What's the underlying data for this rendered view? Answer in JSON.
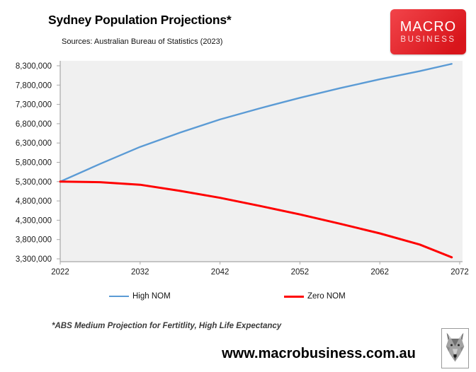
{
  "header": {
    "title": "Sydney Population Projections*",
    "subtitle": "Sources: Australian Bureau of Statistics (2023)",
    "logo": {
      "line1": "MACRO",
      "line2": "BUSINESS",
      "bg_color_top": "#f2444a",
      "bg_color_bottom": "#d8151b"
    }
  },
  "chart_data": {
    "type": "line",
    "title": "Sydney Population Projections*",
    "x": [
      2022,
      2027,
      2032,
      2037,
      2042,
      2047,
      2052,
      2057,
      2062,
      2067,
      2071
    ],
    "series": [
      {
        "name": "High NOM",
        "color": "#5b9bd5",
        "stroke_width": 2.4,
        "values": [
          5300000,
          5760000,
          6200000,
          6570000,
          6910000,
          7200000,
          7470000,
          7720000,
          7950000,
          8160000,
          8350000
        ]
      },
      {
        "name": "Zero NOM",
        "color": "#ff0000",
        "stroke_width": 3,
        "values": [
          5300000,
          5285000,
          5220000,
          5060000,
          4880000,
          4670000,
          4450000,
          4210000,
          3960000,
          3670000,
          3340000
        ]
      }
    ],
    "xlim": [
      2022,
      2072
    ],
    "xticks": [
      2022,
      2032,
      2042,
      2052,
      2062,
      2072
    ],
    "xtick_labels": [
      "2022",
      "2032",
      "2042",
      "2052",
      "2062",
      "2072"
    ],
    "yticks": [
      8300000,
      7800000,
      7300000,
      6800000,
      6300000,
      5800000,
      5300000,
      4800000,
      4300000,
      3800000,
      3300000
    ],
    "ytick_labels": [
      "8,300,000",
      "7,800,000",
      "7,300,000",
      "6,800,000",
      "6,300,000",
      "5,800,000",
      "5,300,000",
      "4,800,000",
      "4,300,000",
      "3,800,000",
      "3,300,000"
    ],
    "ylim": [
      3300000,
      8300000
    ],
    "grid": false,
    "plot_bg": "#f0f0f0",
    "axis_color": "#a6a6a6",
    "tick_label_color": "#1a1a1a",
    "legend_position": "bottom"
  },
  "footer": {
    "footnote": "*ABS Medium Projection for Fertitlity, High Life Expectancy",
    "url": "www.macrobusiness.com.au",
    "wolf_logo_name": "wolf-head-logo"
  }
}
